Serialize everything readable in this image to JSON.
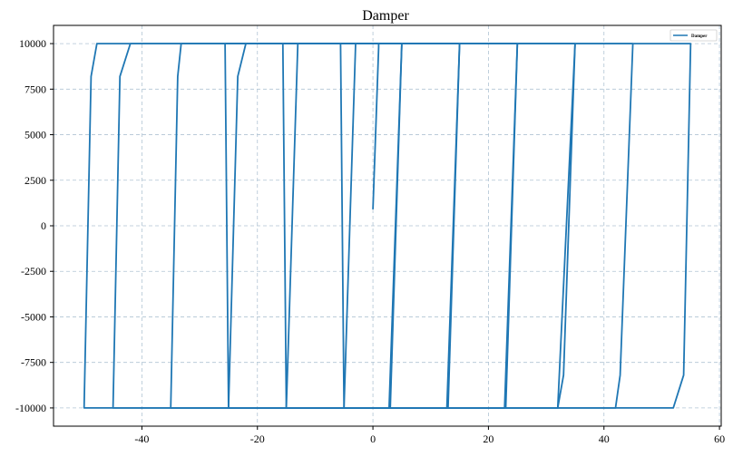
{
  "chart_data": {
    "type": "line",
    "title": "Damper",
    "xlabel": "",
    "ylabel": "",
    "xlim": [
      -55.3,
      60.3
    ],
    "ylim": [
      -11000,
      11000
    ],
    "xticks": [
      -40,
      -20,
      0,
      20,
      40,
      60
    ],
    "xtick_labels": [
      "-40",
      "-20",
      "0",
      "20",
      "40",
      "60"
    ],
    "yticks": [
      -10000,
      -7500,
      -5000,
      -2500,
      0,
      2500,
      5000,
      7500,
      10000
    ],
    "ytick_labels": [
      "-10000",
      "-7500",
      "-5000",
      "-2500",
      "0",
      "2500",
      "5000",
      "7500",
      "10000"
    ],
    "grid": true,
    "legend_position": "top-right",
    "series": [
      {
        "name": "Damper",
        "color": "#1f77b4",
        "x": [
          0,
          1.0,
          5,
          2.8,
          -5,
          -5.6,
          -45,
          -46,
          -47.8,
          55,
          53.8,
          52.0,
          -50,
          -49,
          -47,
          -42,
          -31,
          -22,
          -13,
          0.5,
          15,
          25,
          35,
          45,
          55
        ],
        "y": [
          900,
          10000,
          10000,
          -10000,
          -10000,
          10000,
          10000,
          8200,
          10000,
          10000,
          -8200,
          -10000,
          -10000,
          0,
          8200,
          10000,
          10000,
          10000,
          10000,
          10000,
          10000,
          10000,
          10000,
          10000,
          10000
        ]
      }
    ],
    "cycles": [
      {
        "x": [
          0.0,
          1.0,
          1.0
        ],
        "y": [
          900,
          9800,
          10000
        ]
      },
      {
        "x": [
          1.0,
          5.0,
          2.8,
          -5.0,
          -5.6,
          1.0
        ],
        "y": [
          10000,
          10000,
          -10000,
          -10000,
          10000,
          10000
        ]
      },
      {
        "x": [
          1.0,
          15.0,
          12.8,
          -15.0,
          -15.6,
          1.0
        ],
        "y": [
          10000,
          10000,
          -10000,
          -10000,
          10000,
          10000
        ]
      },
      {
        "x": [
          1.0,
          25.0,
          22.8,
          -25.0,
          -25.6,
          1.0
        ],
        "y": [
          10000,
          10000,
          -10000,
          -10000,
          10000,
          10000
        ]
      },
      {
        "x": [
          -22.0,
          35.0,
          32.0,
          -35.0,
          -33.8,
          -33.2,
          -22.0
        ],
        "y": [
          10000,
          10000,
          -10000,
          -10000,
          8200,
          10000,
          10000
        ]
      },
      {
        "x": [
          -32.0,
          45.0,
          42.8,
          42.0,
          -45.0,
          -43.8,
          -42.0,
          -32.0
        ],
        "y": [
          10000,
          10000,
          -8200,
          -10000,
          -10000,
          8200,
          10000,
          10000
        ]
      },
      {
        "x": [
          -42.0,
          55.0,
          53.8,
          52.0,
          -50.0,
          -48.8,
          -47.8,
          -42.0
        ],
        "y": [
          10000,
          10000,
          -8200,
          -10000,
          -10000,
          8200,
          10000,
          10000
        ]
      },
      {
        "x": [
          -22.0,
          -23.4,
          -25.0
        ],
        "y": [
          10000,
          8200,
          -10000
        ]
      },
      {
        "x": [
          -13.0,
          -15.0
        ],
        "y": [
          10000,
          -10000
        ]
      },
      {
        "x": [
          -3.0,
          -5.0
        ],
        "y": [
          10000,
          -10000
        ]
      },
      {
        "x": [
          5.0,
          3.0
        ],
        "y": [
          10000,
          -10000
        ]
      },
      {
        "x": [
          15.0,
          13.0
        ],
        "y": [
          10000,
          -10000
        ]
      },
      {
        "x": [
          25.0,
          23.0
        ],
        "y": [
          10000,
          -10000
        ]
      },
      {
        "x": [
          35.0,
          33.0,
          32.0
        ],
        "y": [
          10000,
          -8200,
          -10000
        ]
      }
    ]
  }
}
